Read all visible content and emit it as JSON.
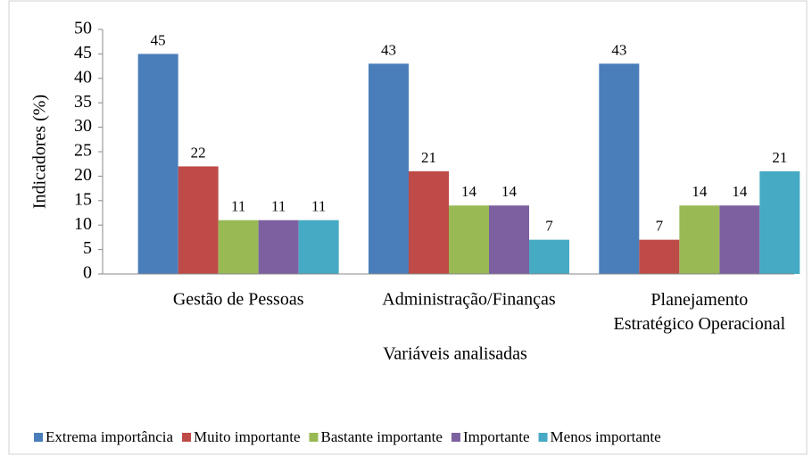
{
  "chart_data": {
    "type": "bar",
    "ylabel": "Indicadores (%)",
    "xlabel": "Variáveis analisadas",
    "categories": [
      "Gestão de Pessoas",
      "Administração/Finanças",
      "Planejamento Estratégico Operacional"
    ],
    "series": [
      {
        "name": "Extrema importância",
        "color": "#4a7ebb",
        "values": [
          45,
          43,
          43
        ]
      },
      {
        "name": "Muito importante",
        "color": "#be4b48",
        "values": [
          22,
          21,
          7
        ]
      },
      {
        "name": "Bastante importante",
        "color": "#98b954",
        "values": [
          11,
          14,
          14
        ]
      },
      {
        "name": "Importante",
        "color": "#7d60a0",
        "values": [
          11,
          14,
          14
        ]
      },
      {
        "name": "Menos importante",
        "color": "#46aac5",
        "values": [
          11,
          7,
          21
        ]
      }
    ],
    "ylim": [
      0,
      50
    ],
    "yticks": [
      0,
      5,
      10,
      15,
      20,
      25,
      30,
      35,
      40,
      45,
      50
    ],
    "legend": "bottom"
  }
}
